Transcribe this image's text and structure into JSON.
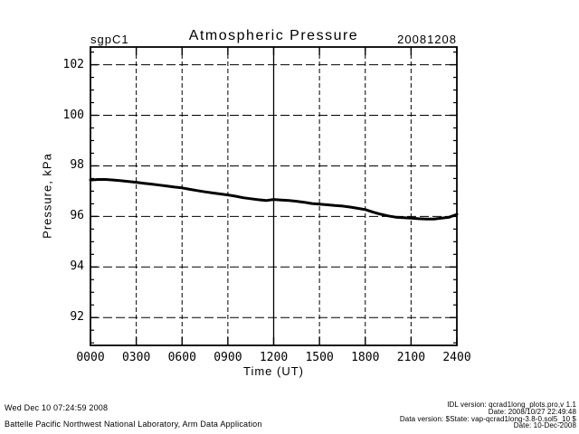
{
  "chart_data": {
    "type": "line",
    "site_label": "sgpC1",
    "title": "Atmospheric Pressure",
    "date_label": "20081208",
    "xlabel": "Time (UT)",
    "ylabel": "Pressure, kPa",
    "xlim_hours": [
      0,
      24
    ],
    "ylim": [
      90.9,
      102.7
    ],
    "xticks": [
      {
        "hour": 0,
        "label": "0000"
      },
      {
        "hour": 3,
        "label": "0300"
      },
      {
        "hour": 6,
        "label": "0600"
      },
      {
        "hour": 9,
        "label": "0900"
      },
      {
        "hour": 12,
        "label": "1200"
      },
      {
        "hour": 15,
        "label": "1500"
      },
      {
        "hour": 18,
        "label": "1800"
      },
      {
        "hour": 21,
        "label": "2100"
      },
      {
        "hour": 24,
        "label": "2400"
      }
    ],
    "yticks": [
      102,
      100,
      98,
      96,
      94,
      92
    ],
    "y_minor_step": 0.5,
    "grid": {
      "style": "dashed",
      "solid_vline_hour": 12
    },
    "line_color": "#000000",
    "background_color": "#ffffff",
    "series": [
      {
        "name": "atmospheric-pressure-kpa",
        "x_hours": [
          0,
          0.5,
          1,
          1.5,
          2,
          2.5,
          3,
          3.5,
          4,
          4.5,
          5,
          5.5,
          6,
          6.5,
          7,
          7.5,
          8,
          8.5,
          9,
          9.5,
          10,
          10.5,
          11,
          11.5,
          12,
          12.5,
          13,
          13.5,
          14,
          14.5,
          15,
          15.5,
          16,
          16.5,
          17,
          17.5,
          18,
          18.5,
          19,
          19.5,
          20,
          20.5,
          21,
          21.5,
          22,
          22.5,
          23,
          23.5,
          24
        ],
        "values": [
          97.44,
          97.46,
          97.46,
          97.44,
          97.41,
          97.38,
          97.35,
          97.31,
          97.28,
          97.24,
          97.2,
          97.16,
          97.13,
          97.07,
          97.02,
          96.97,
          96.93,
          96.89,
          96.85,
          96.8,
          96.74,
          96.7,
          96.66,
          96.63,
          96.67,
          96.65,
          96.63,
          96.6,
          96.56,
          96.51,
          96.49,
          96.46,
          96.43,
          96.41,
          96.37,
          96.32,
          96.27,
          96.17,
          96.09,
          96.02,
          95.97,
          95.95,
          95.93,
          95.91,
          95.9,
          95.9,
          95.93,
          95.97,
          96.08
        ]
      }
    ]
  },
  "footer": {
    "left": [
      "Wed Dec 10 07:24:59 2008",
      "Battelle Pacific Northwest National Laboratory, Arm Data Application"
    ],
    "right": [
      "IDL version: qcrad1long_plots.pro,v 1.1",
      "Date: 2008/10/27 22:49:48",
      "Data version: $State: vap-qcrad1long-3.8-0.sol5_10 $",
      "Date: 10-Dec-2008"
    ]
  }
}
